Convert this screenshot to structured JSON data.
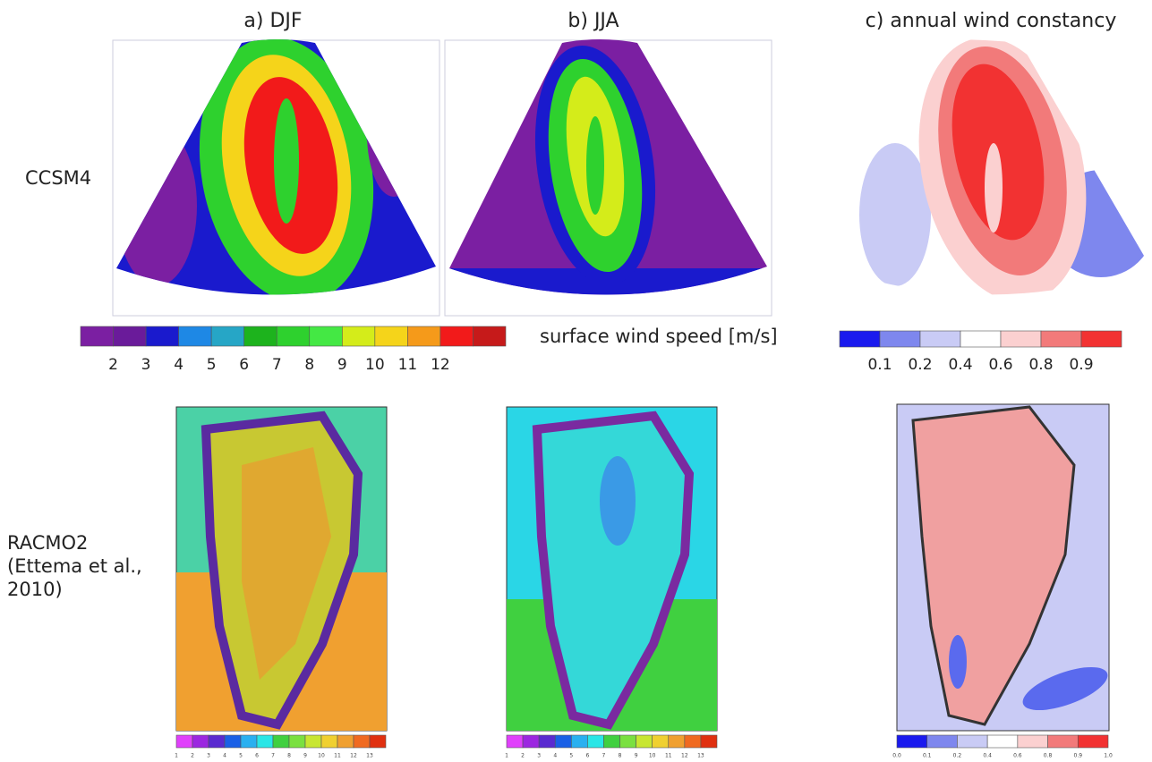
{
  "columns": [
    "a) DJF",
    "b) JJA",
    "c) annual wind constancy"
  ],
  "rows": [
    [
      "CCSM4"
    ],
    [
      "RACMO2",
      "(Ettema et al.,",
      " 2010)"
    ]
  ],
  "colorbars": {
    "ccsm_speed": {
      "title": "surface wind speed [m/s]",
      "labels": [
        "2",
        "3",
        "4",
        "5",
        "6",
        "7",
        "8",
        "9",
        "10",
        "11",
        "12"
      ]
    },
    "ccsm_constancy": {
      "labels": [
        "0.1",
        "0.2",
        "0.4",
        "0.6",
        "0.8",
        "0.9"
      ]
    },
    "racmo_speed_djf": {
      "labels": [
        "1",
        "2",
        "3",
        "4",
        "5",
        "6",
        "7",
        "8",
        "9",
        "10",
        "11",
        "12",
        "13"
      ]
    },
    "racmo_speed_jja": {
      "labels": [
        "1",
        "2",
        "3",
        "4",
        "5",
        "6",
        "7",
        "8",
        "9",
        "10",
        "11",
        "12",
        "13"
      ]
    },
    "racmo_constancy": {
      "labels": [
        "0.0",
        "0.1",
        "0.2",
        "0.4",
        "0.6",
        "0.8",
        "0.9",
        "1.0"
      ]
    }
  }
}
